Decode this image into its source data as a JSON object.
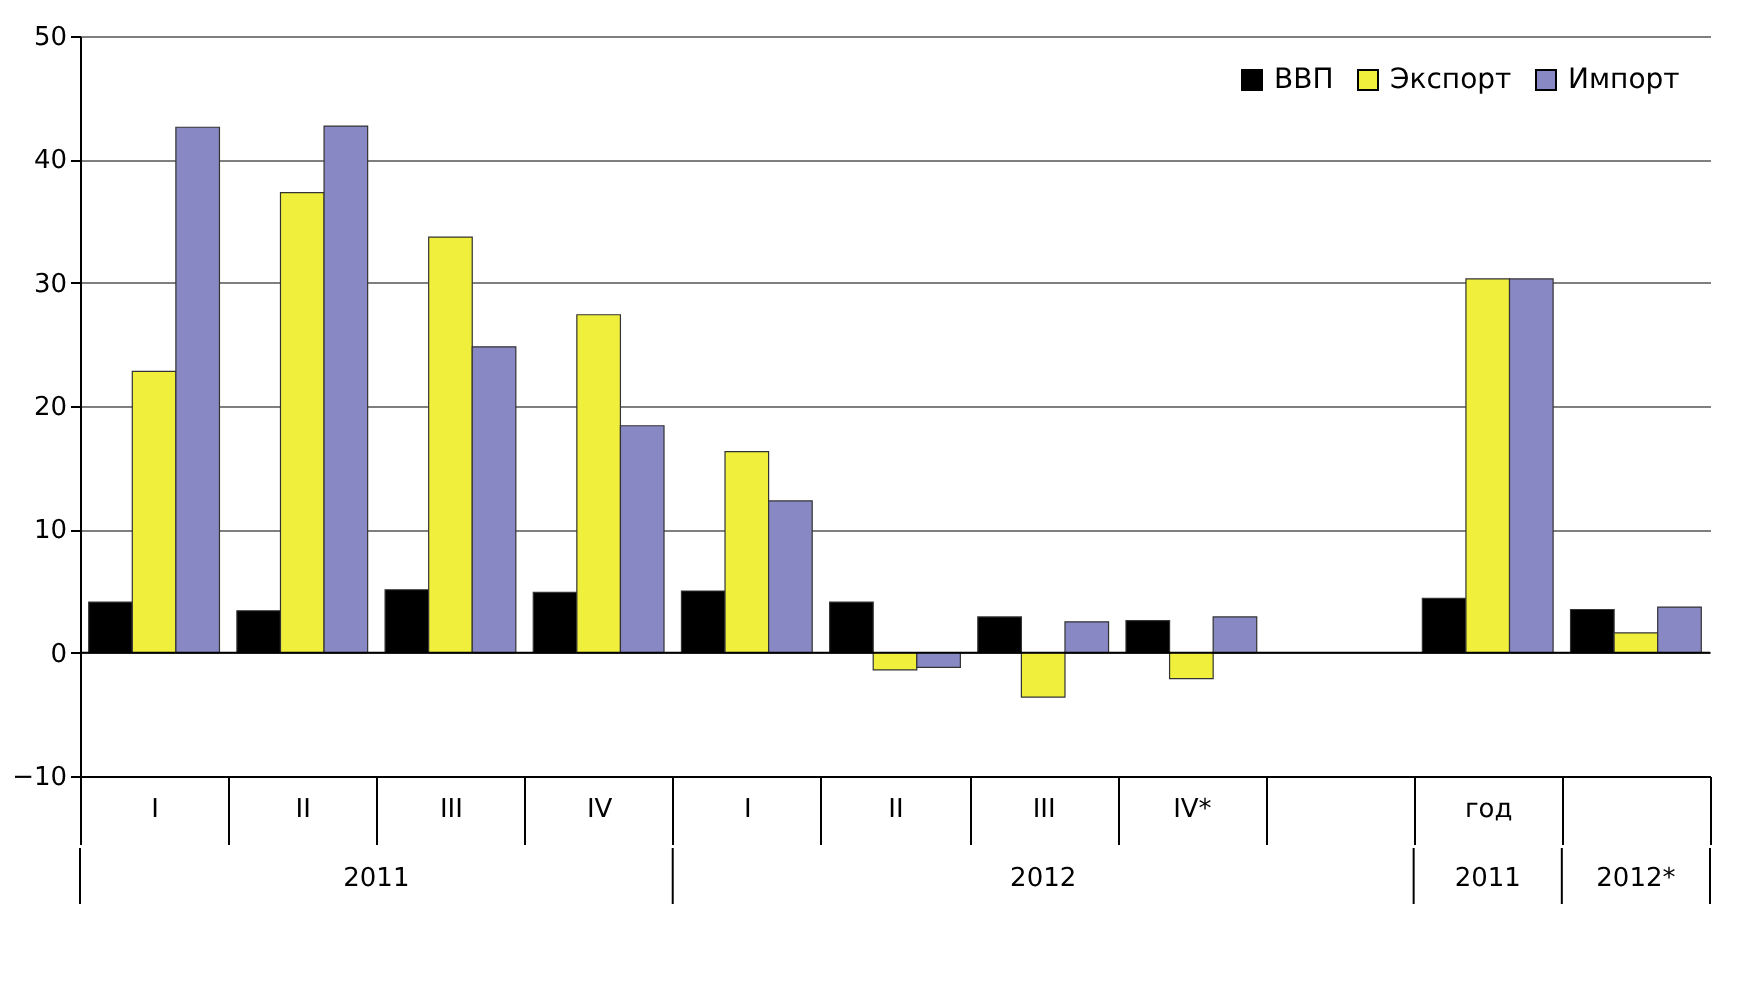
{
  "chart_data": {
    "type": "bar",
    "categories": [
      "I",
      "II",
      "III",
      "IV",
      "I",
      "II",
      "III",
      "IV*",
      null,
      "год",
      null
    ],
    "series": [
      {
        "name": "ВВП",
        "color": "#000000",
        "values": [
          4.1,
          3.4,
          5.1,
          4.9,
          5.0,
          4.1,
          2.9,
          2.6,
          null,
          4.4,
          3.5
        ]
      },
      {
        "name": "Экспорт",
        "color": "#f0f03c",
        "values": [
          22.8,
          37.3,
          33.7,
          27.4,
          16.3,
          -1.4,
          -3.6,
          -2.1,
          null,
          30.3,
          1.6
        ]
      },
      {
        "name": "Импорт",
        "color": "#8888c4",
        "values": [
          42.6,
          42.7,
          24.8,
          18.4,
          12.3,
          -1.2,
          2.5,
          2.9,
          null,
          30.3,
          3.7
        ]
      }
    ],
    "ylim": [
      -10,
      50
    ],
    "yticks": [
      -10,
      0,
      10,
      20,
      30,
      40,
      50
    ],
    "grid": "y",
    "legend": "top right",
    "annotations": [
      "2011",
      "2012",
      "2011",
      "2012*"
    ]
  }
}
